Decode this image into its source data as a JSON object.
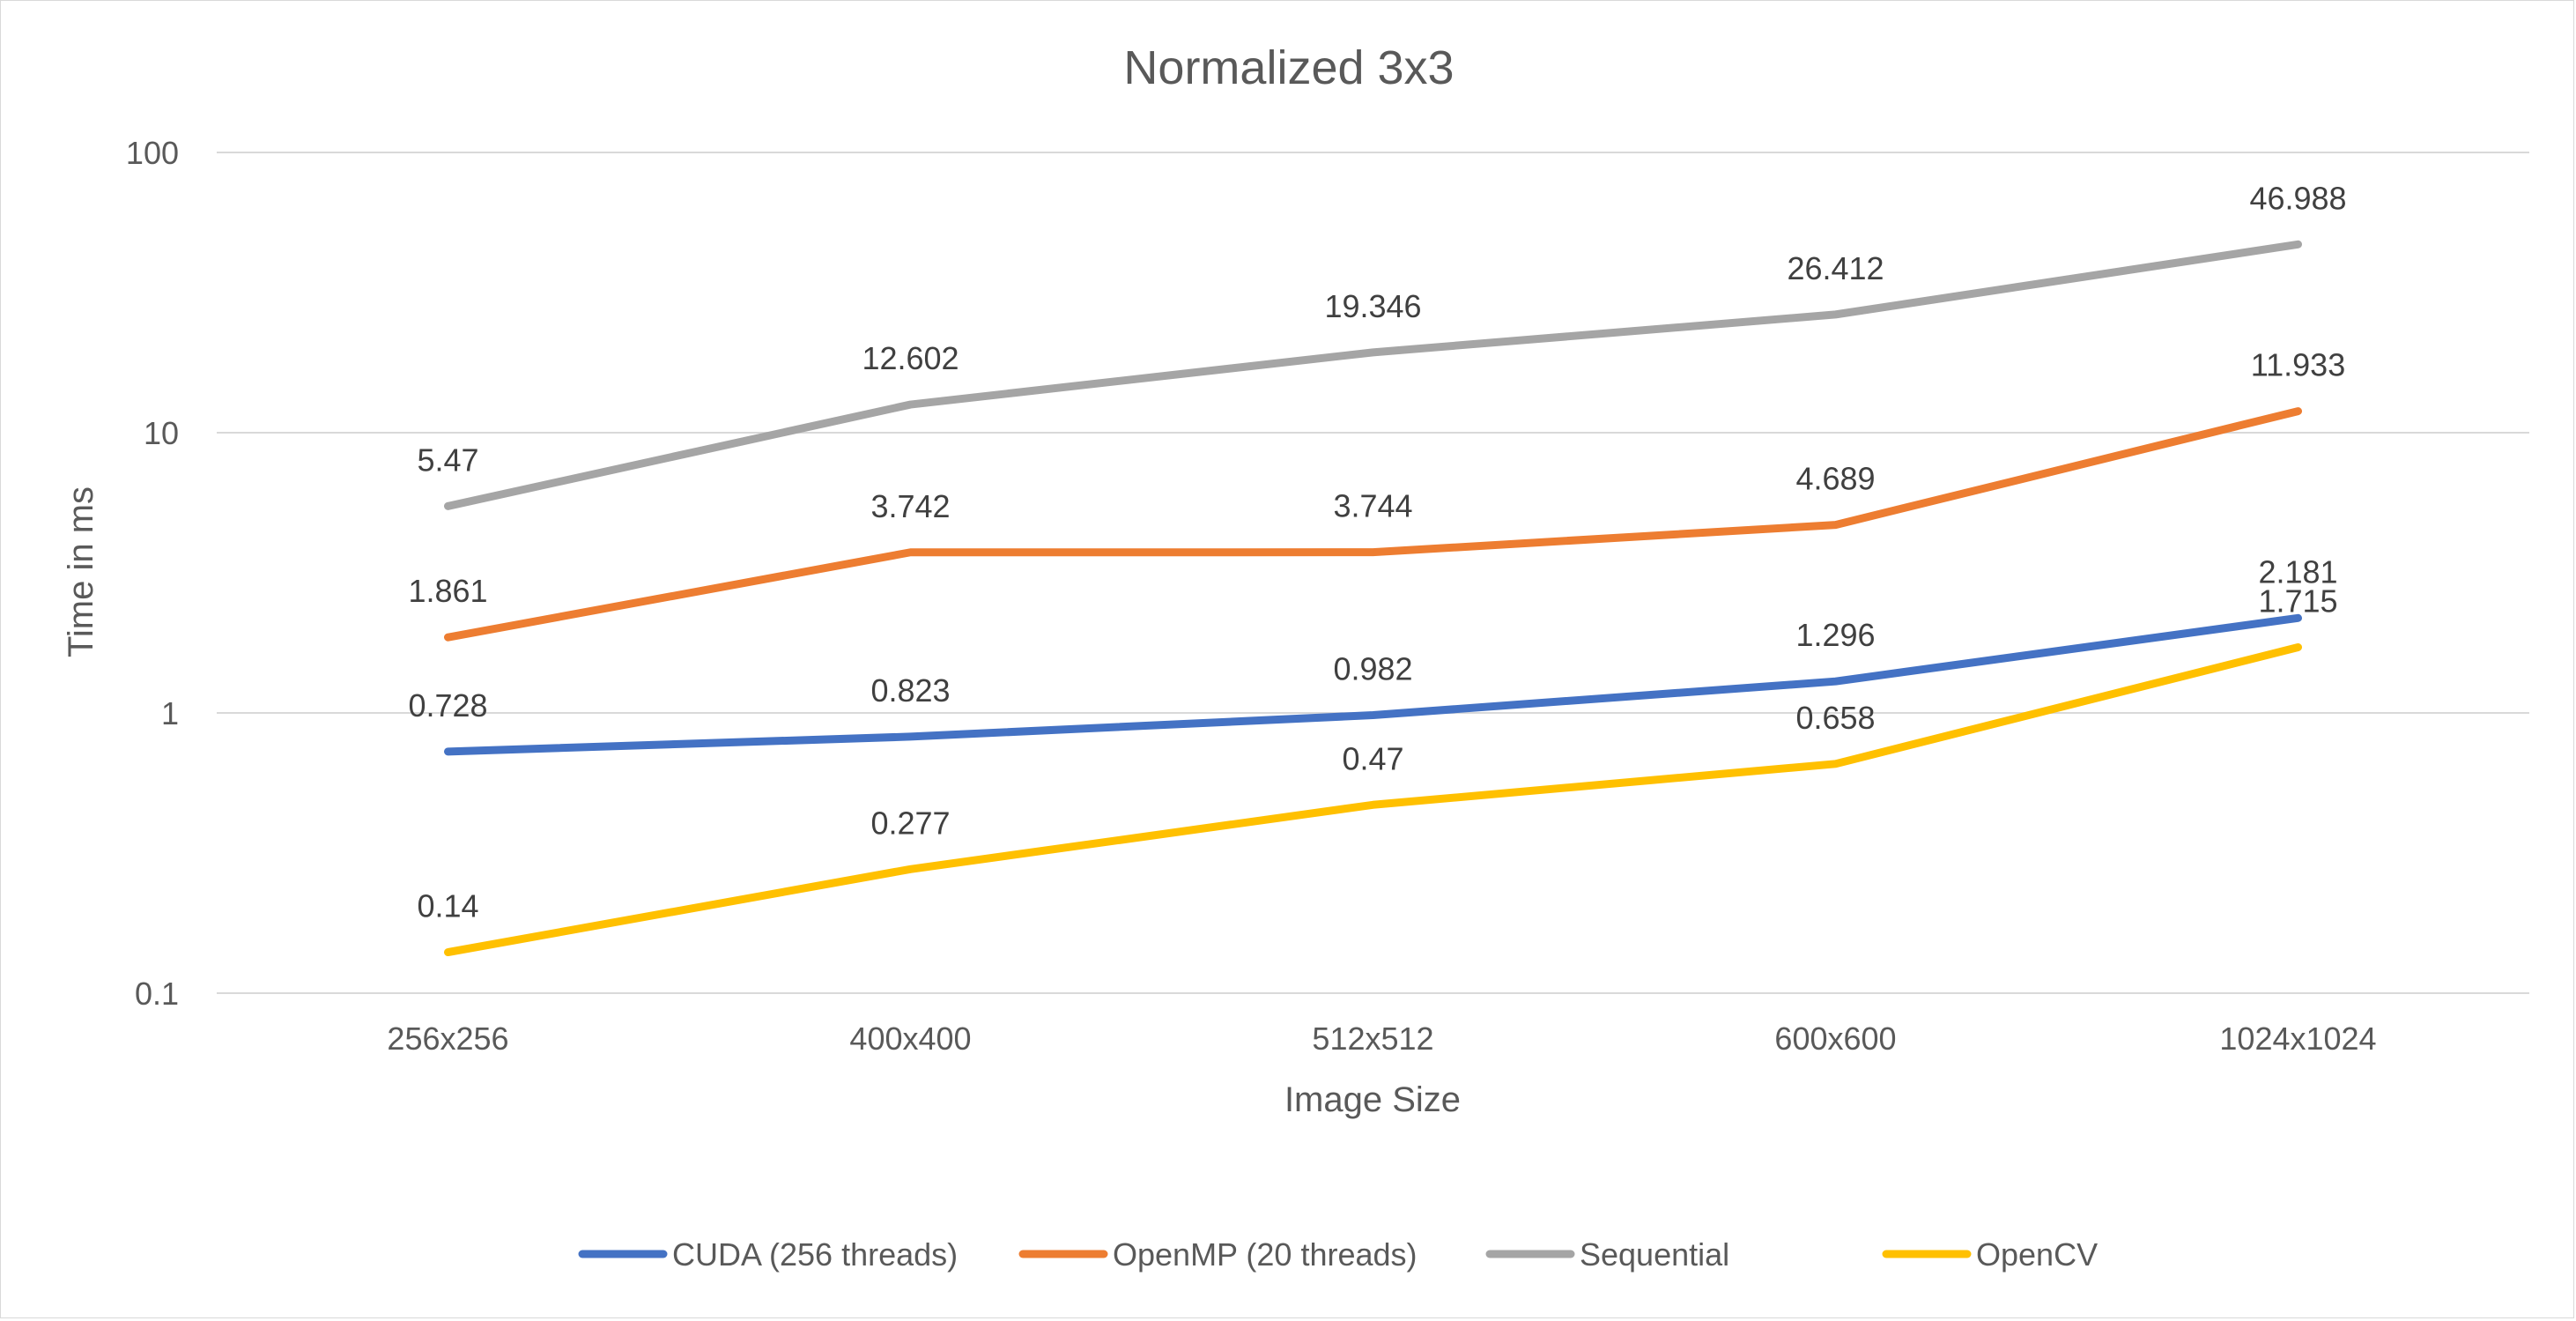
{
  "chart_data": {
    "type": "line",
    "title": "Normalized 3x3",
    "xlabel": "Image Size",
    "ylabel": "Time in ms",
    "yscale": "log",
    "ylim": [
      0.1,
      100
    ],
    "yticks": [
      "0.1",
      "1",
      "10",
      "100"
    ],
    "categories": [
      "256x256",
      "400x400",
      "512x512",
      "600x600",
      "1024x1024"
    ],
    "grid": true,
    "legend_position": "bottom",
    "series": [
      {
        "name": "CUDA (256 threads)",
        "color": "#4472C4",
        "values": [
          0.728,
          0.823,
          0.982,
          1.296,
          2.181
        ],
        "labels": [
          "0.728",
          "0.823",
          "0.982",
          "1.296",
          "2.181"
        ]
      },
      {
        "name": "OpenMP (20 threads)",
        "color": "#ED7D31",
        "values": [
          1.861,
          3.742,
          3.744,
          4.689,
          11.933
        ],
        "labels": [
          "1.861",
          "3.742",
          "3.744",
          "4.689",
          "11.933"
        ]
      },
      {
        "name": "Sequential",
        "color": "#A5A5A5",
        "values": [
          5.47,
          12.602,
          19.346,
          26.412,
          46.988
        ],
        "labels": [
          "5.47",
          "12.602",
          "19.346",
          "26.412",
          "46.988"
        ]
      },
      {
        "name": "OpenCV",
        "color": "#FFC000",
        "values": [
          0.14,
          0.277,
          0.47,
          0.658,
          1.715
        ],
        "labels": [
          "0.14",
          "0.277",
          "0.47",
          "0.658",
          "1.715"
        ]
      }
    ]
  }
}
